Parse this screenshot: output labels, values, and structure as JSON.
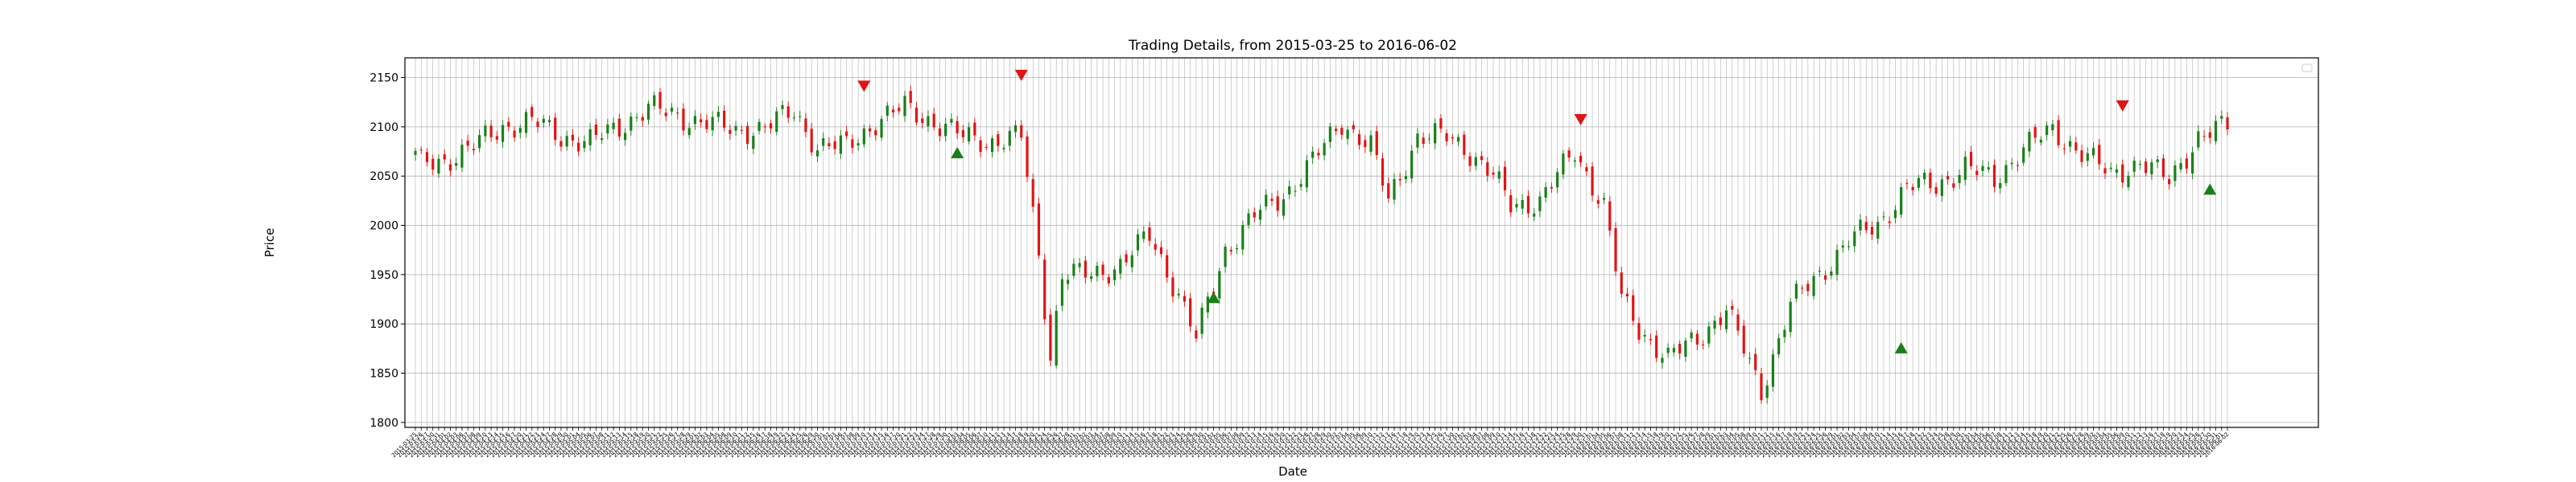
{
  "chart_data": {
    "type": "candlestick",
    "title": "Trading Details, from 2015-03-25 to 2016-06-02",
    "xlabel": "Date",
    "ylabel": "Price",
    "ylim": [
      1795,
      2170
    ],
    "yticks": [
      1800,
      1850,
      1900,
      1950,
      2000,
      2050,
      2100,
      2150
    ],
    "grid": true,
    "legend": "top-right",
    "x_start": "2015-03-25",
    "x_end": "2016-06-02",
    "up_color": "#1a7f1a",
    "down_color": "#e01414",
    "anchors": [
      [
        "2015-03-25",
        2070
      ],
      [
        "2015-03-26",
        2062
      ],
      [
        "2015-04-01",
        2066
      ],
      [
        "2015-04-08",
        2080
      ],
      [
        "2015-04-15",
        2100
      ],
      [
        "2015-04-22",
        2106
      ],
      [
        "2015-04-29",
        2090
      ],
      [
        "2015-05-06",
        2085
      ],
      [
        "2015-05-13",
        2100
      ],
      [
        "2015-05-20",
        2120
      ],
      [
        "2015-05-27",
        2110
      ],
      [
        "2015-06-03",
        2105
      ],
      [
        "2015-06-10",
        2095
      ],
      [
        "2015-06-17",
        2100
      ],
      [
        "2015-06-24",
        2115
      ],
      [
        "2015-06-30",
        2080
      ],
      [
        "2015-07-07",
        2080
      ],
      [
        "2015-07-14",
        2105
      ],
      [
        "2015-07-21",
        2120
      ],
      [
        "2015-07-28",
        2105
      ],
      [
        "2015-08-04",
        2090
      ],
      [
        "2015-08-11",
        2085
      ],
      [
        "2015-08-18",
        2090
      ],
      [
        "2015-08-21",
        1970
      ],
      [
        "2015-08-25",
        1868
      ],
      [
        "2015-08-27",
        1950
      ],
      [
        "2015-09-03",
        1950
      ],
      [
        "2015-09-10",
        1960
      ],
      [
        "2015-09-17",
        1990
      ],
      [
        "2015-09-24",
        1930
      ],
      [
        "2015-09-29",
        1885
      ],
      [
        "2015-10-06",
        1975
      ],
      [
        "2015-10-13",
        2010
      ],
      [
        "2015-10-20",
        2030
      ],
      [
        "2015-10-27",
        2065
      ],
      [
        "2015-11-03",
        2105
      ],
      [
        "2015-11-10",
        2080
      ],
      [
        "2015-11-13",
        2025
      ],
      [
        "2015-11-20",
        2090
      ],
      [
        "2015-11-27",
        2090
      ],
      [
        "2015-12-02",
        2080
      ],
      [
        "2015-12-09",
        2050
      ],
      [
        "2015-12-14",
        2020
      ],
      [
        "2015-12-21",
        2025
      ],
      [
        "2015-12-29",
        2075
      ],
      [
        "2016-01-05",
        2020
      ],
      [
        "2016-01-08",
        1925
      ],
      [
        "2016-01-13",
        1895
      ],
      [
        "2016-01-20",
        1865
      ],
      [
        "2016-01-27",
        1885
      ],
      [
        "2016-02-03",
        1915
      ],
      [
        "2016-02-11",
        1832
      ],
      [
        "2016-02-18",
        1920
      ],
      [
        "2016-02-25",
        1950
      ],
      [
        "2016-03-03",
        1985
      ],
      [
        "2016-03-10",
        2000
      ],
      [
        "2016-03-17",
        2040
      ],
      [
        "2016-03-24",
        2040
      ],
      [
        "2016-03-31",
        2060
      ],
      [
        "2016-04-07",
        2045
      ],
      [
        "2016-04-14",
        2080
      ],
      [
        "2016-04-21",
        2095
      ],
      [
        "2016-04-28",
        2075
      ],
      [
        "2016-05-05",
        2050
      ],
      [
        "2016-05-12",
        2065
      ],
      [
        "2016-05-19",
        2045
      ],
      [
        "2016-05-26",
        2090
      ],
      [
        "2016-06-02",
        2100
      ]
    ],
    "signals": [
      {
        "type": "sell",
        "date": "2015-07-10",
        "price": 2142
      },
      {
        "type": "buy",
        "date": "2015-08-03",
        "price": 2073
      },
      {
        "type": "sell",
        "date": "2015-08-18",
        "price": 2153
      },
      {
        "type": "buy",
        "date": "2015-10-02",
        "price": 1926
      },
      {
        "type": "sell",
        "date": "2015-12-30",
        "price": 2108
      },
      {
        "type": "buy",
        "date": "2016-03-16",
        "price": 1875
      },
      {
        "type": "sell",
        "date": "2016-05-09",
        "price": 2122
      },
      {
        "type": "buy",
        "date": "2016-05-30",
        "price": 2036
      }
    ],
    "signal_colors": {
      "buy": "#1a7f1a",
      "sell": "#e01414"
    }
  }
}
